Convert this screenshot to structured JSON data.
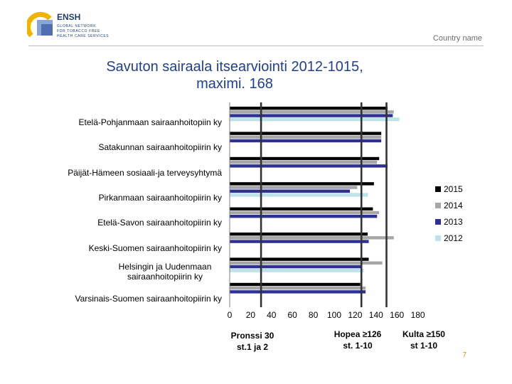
{
  "header": {
    "logo_brand": "ENSH",
    "logo_lines": [
      "GLOBAL NETWORK",
      "FOR TOBACCO FREE",
      "HEALTH CARE SERVICES"
    ],
    "country": "Country name"
  },
  "colors": {
    "2015": "#000000",
    "2014": "#a6a6a6",
    "2013": "#2e3192",
    "2012": "#bfe3ea",
    "thresholds": "#333333",
    "title": "#1f3f8f"
  },
  "chart_data": {
    "type": "bar",
    "orientation": "horizontal",
    "title": "Savuton sairaala itsearviointi 2012-1015, maximi. 168",
    "title_lines": [
      "Savuton sairaala itsearviointi 2012-1015,",
      "maximi. 168"
    ],
    "categories": [
      "Etelä-Pohjanmaan sairaanhoitopiin ky",
      "Satakunnan sairaanhoitopiirin ky",
      "Päijät-Hämeen sosiaali-ja terveysyhtymä",
      "Pirkanmaan sairaanhoitopiirin ky",
      "Etelä-Savon sairaanhoitopiirin ky",
      "Keski-Suomen sairaanhoitopiirin ky",
      "Helsingin ja Uudenmaan sairaanhoitopiirin ky",
      "Varsinais-Suomen sairaanhoitopiirin ky"
    ],
    "series": [
      {
        "name": "2015",
        "values": [
          151,
          145,
          143,
          138,
          137,
          132,
          133,
          125
        ]
      },
      {
        "name": "2014",
        "values": [
          157,
          145,
          141,
          122,
          143,
          157,
          146,
          130
        ]
      },
      {
        "name": "2013",
        "values": [
          156,
          145,
          151,
          115,
          141,
          133,
          126,
          130
        ]
      },
      {
        "name": "2012",
        "values": [
          162,
          0,
          0,
          132,
          0,
          0,
          128,
          0
        ]
      }
    ],
    "xlim": [
      0,
      180
    ],
    "xticks": [
      "0",
      "20",
      "40",
      "60",
      "80",
      "100",
      "120",
      "140",
      "160",
      "180"
    ],
    "reference_lines": [
      30,
      126,
      150
    ],
    "annotations": [
      {
        "label": "Pronssi 30 st.1 ja 2",
        "lines": [
          "Pronssi 30",
          "st.1 ja 2"
        ]
      },
      {
        "label": "Hopea ≥126 st. 1-10",
        "lines": [
          "Hopea ≥126",
          "st. 1-10"
        ]
      },
      {
        "label": "Kulta ≥150 st 1-10",
        "lines": [
          "Kulta ≥150",
          "st 1-10"
        ]
      }
    ],
    "legend_position": "right"
  },
  "page_number": "7"
}
